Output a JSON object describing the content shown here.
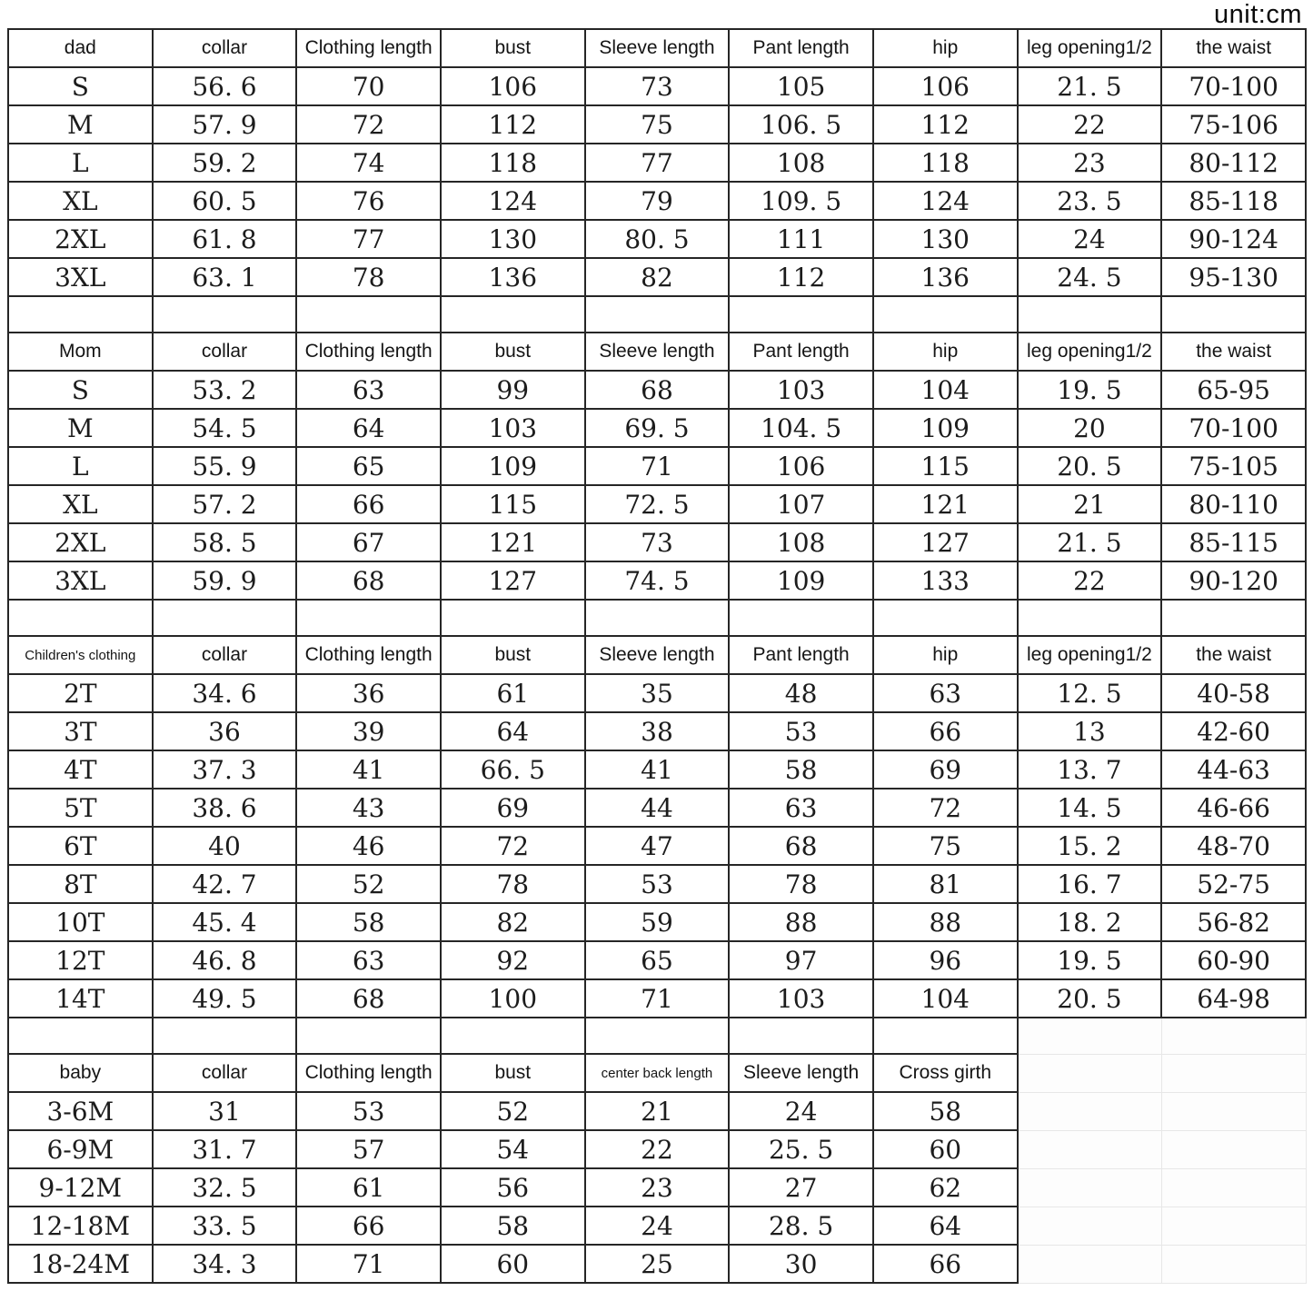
{
  "unit_label": "unit:cm",
  "sections": [
    {
      "name": "dad",
      "headers": [
        "dad",
        "collar",
        "Clothing length",
        "bust",
        "Sleeve length",
        "Pant length",
        "hip",
        "leg opening1/2",
        "the waist"
      ],
      "rows": [
        [
          "S",
          "56. 6",
          "70",
          "106",
          "73",
          "105",
          "106",
          "21. 5",
          "70-100"
        ],
        [
          "M",
          "57. 9",
          "72",
          "112",
          "75",
          "106. 5",
          "112",
          "22",
          "75-106"
        ],
        [
          "L",
          "59. 2",
          "74",
          "118",
          "77",
          "108",
          "118",
          "23",
          "80-112"
        ],
        [
          "XL",
          "60. 5",
          "76",
          "124",
          "79",
          "109. 5",
          "124",
          "23. 5",
          "85-118"
        ],
        [
          "2XL",
          "61. 8",
          "77",
          "130",
          "80. 5",
          "111",
          "130",
          "24",
          "90-124"
        ],
        [
          "3XL",
          "63. 1",
          "78",
          "136",
          "82",
          "112",
          "136",
          "24. 5",
          "95-130"
        ]
      ]
    },
    {
      "name": "mom",
      "headers": [
        "Mom",
        "collar",
        "Clothing length",
        "bust",
        "Sleeve length",
        "Pant length",
        "hip",
        "leg opening1/2",
        "the waist"
      ],
      "rows": [
        [
          "S",
          "53. 2",
          "63",
          "99",
          "68",
          "103",
          "104",
          "19. 5",
          "65-95"
        ],
        [
          "M",
          "54. 5",
          "64",
          "103",
          "69. 5",
          "104. 5",
          "109",
          "20",
          "70-100"
        ],
        [
          "L",
          "55. 9",
          "65",
          "109",
          "71",
          "106",
          "115",
          "20. 5",
          "75-105"
        ],
        [
          "XL",
          "57. 2",
          "66",
          "115",
          "72. 5",
          "107",
          "121",
          "21",
          "80-110"
        ],
        [
          "2XL",
          "58. 5",
          "67",
          "121",
          "73",
          "108",
          "127",
          "21. 5",
          "85-115"
        ],
        [
          "3XL",
          "59. 9",
          "68",
          "127",
          "74. 5",
          "109",
          "133",
          "22",
          "90-120"
        ]
      ]
    },
    {
      "name": "children",
      "headers": [
        "Children's clothing",
        "collar",
        "Clothing length",
        "bust",
        "Sleeve length",
        "Pant length",
        "hip",
        "leg opening1/2",
        "the waist"
      ],
      "rows": [
        [
          "2T",
          "34. 6",
          "36",
          "61",
          "35",
          "48",
          "63",
          "12. 5",
          "40-58"
        ],
        [
          "3T",
          "36",
          "39",
          "64",
          "38",
          "53",
          "66",
          "13",
          "42-60"
        ],
        [
          "4T",
          "37. 3",
          "41",
          "66. 5",
          "41",
          "58",
          "69",
          "13. 7",
          "44-63"
        ],
        [
          "5T",
          "38. 6",
          "43",
          "69",
          "44",
          "63",
          "72",
          "14. 5",
          "46-66"
        ],
        [
          "6T",
          "40",
          "46",
          "72",
          "47",
          "68",
          "75",
          "15. 2",
          "48-70"
        ],
        [
          "8T",
          "42. 7",
          "52",
          "78",
          "53",
          "78",
          "81",
          "16. 7",
          "52-75"
        ],
        [
          "10T",
          "45. 4",
          "58",
          "82",
          "59",
          "88",
          "88",
          "18. 2",
          "56-82"
        ],
        [
          "12T",
          "46. 8",
          "63",
          "92",
          "65",
          "97",
          "96",
          "19. 5",
          "60-90"
        ],
        [
          "14T",
          "49. 5",
          "68",
          "100",
          "71",
          "103",
          "104",
          "20. 5",
          "64-98"
        ]
      ]
    },
    {
      "name": "baby",
      "headers": [
        "baby",
        "collar",
        "Clothing length",
        "bust",
        "center back length",
        "Sleeve length",
        "Cross girth"
      ],
      "rows": [
        [
          "3-6M",
          "31",
          "53",
          "52",
          "21",
          "24",
          "58"
        ],
        [
          "6-9M",
          "31. 7",
          "57",
          "54",
          "22",
          "25. 5",
          "60"
        ],
        [
          "9-12M",
          "32. 5",
          "61",
          "56",
          "23",
          "27",
          "62"
        ],
        [
          "12-18M",
          "33. 5",
          "66",
          "58",
          "24",
          "28. 5",
          "64"
        ],
        [
          "18-24M",
          "34. 3",
          "71",
          "60",
          "25",
          "30",
          "66"
        ]
      ]
    }
  ]
}
